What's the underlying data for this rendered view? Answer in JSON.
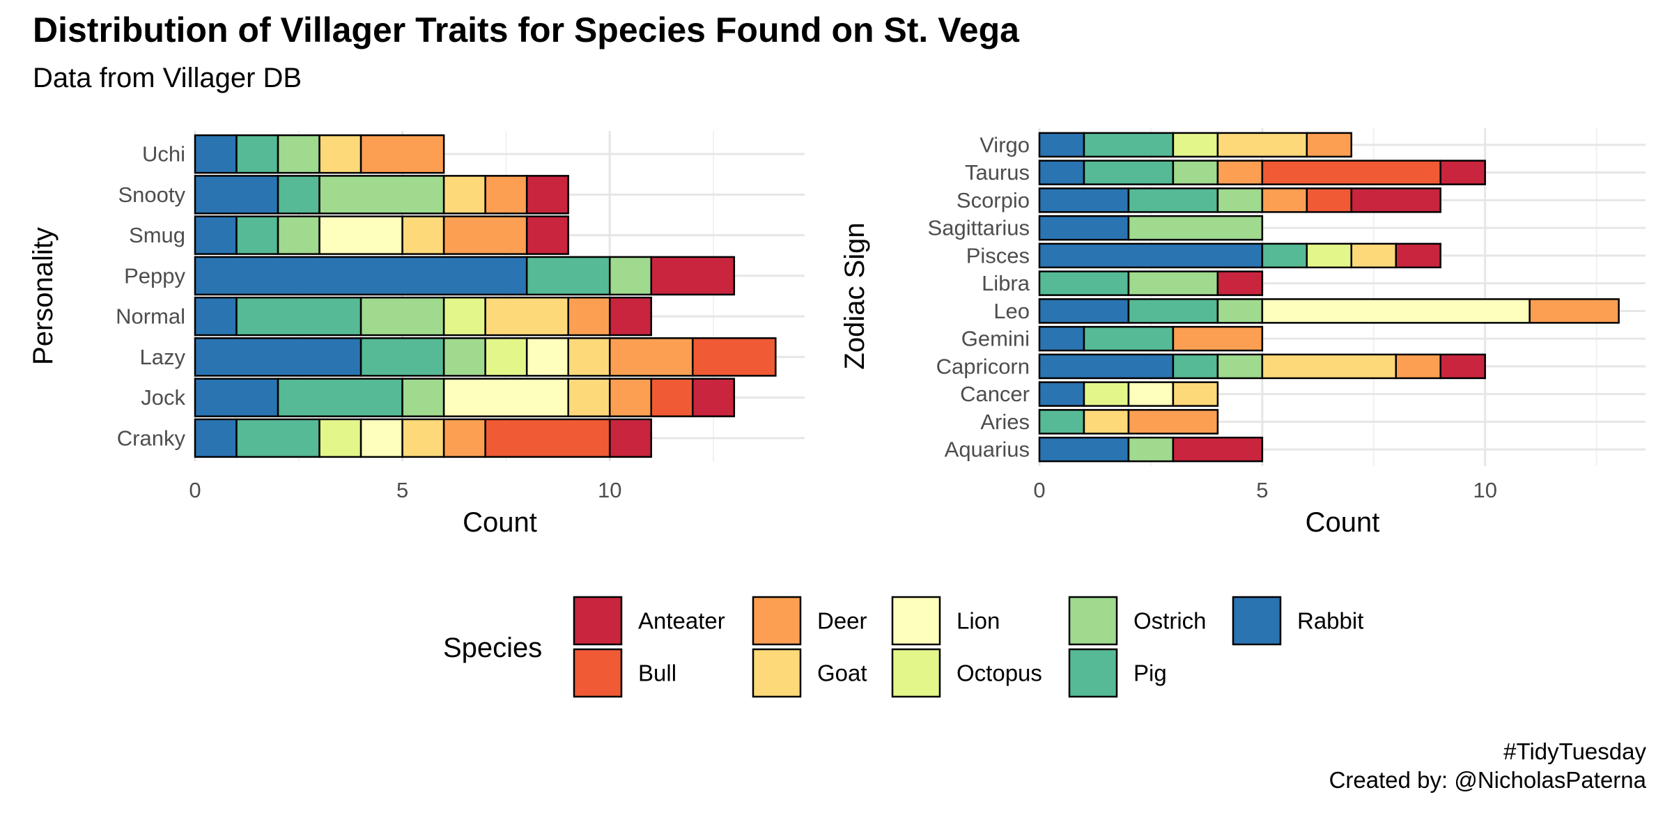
{
  "title": "Distribution of Villager Traits for Species Found on St. Vega",
  "subtitle": "Data from Villager DB",
  "caption": {
    "line1": "#TidyTuesday",
    "line2": "Created by: @NicholasPaterna"
  },
  "legend": {
    "title": "Species",
    "position": "bottom",
    "items": [
      {
        "name": "Anteater",
        "color": "#C9253E"
      },
      {
        "name": "Bull",
        "color": "#F05A35"
      },
      {
        "name": "Deer",
        "color": "#FC9F52"
      },
      {
        "name": "Goat",
        "color": "#FDD97A"
      },
      {
        "name": "Lion",
        "color": "#FFFFBD"
      },
      {
        "name": "Octopus",
        "color": "#E3F68A"
      },
      {
        "name": "Ostrich",
        "color": "#9FDA8E"
      },
      {
        "name": "Pig",
        "color": "#55BA95"
      },
      {
        "name": "Rabbit",
        "color": "#2A74B2"
      }
    ]
  },
  "chart_data": [
    {
      "type": "bar",
      "orientation": "horizontal",
      "stacked": true,
      "xlabel": "Count",
      "ylabel": "Personality",
      "xlim": [
        0,
        14.7
      ],
      "xticks": [
        0,
        5,
        10
      ],
      "grid": true,
      "categories": [
        "Uchi",
        "Snooty",
        "Smug",
        "Peppy",
        "Normal",
        "Lazy",
        "Jock",
        "Cranky"
      ],
      "series": [
        {
          "name": "Rabbit",
          "values": [
            1,
            2,
            1,
            8,
            1,
            4,
            2,
            1
          ]
        },
        {
          "name": "Pig",
          "values": [
            1,
            1,
            1,
            2,
            3,
            2,
            3,
            2
          ]
        },
        {
          "name": "Ostrich",
          "values": [
            1,
            3,
            1,
            1,
            2,
            1,
            1,
            0
          ]
        },
        {
          "name": "Octopus",
          "values": [
            0,
            0,
            0,
            0,
            1,
            1,
            0,
            1
          ]
        },
        {
          "name": "Lion",
          "values": [
            0,
            0,
            2,
            0,
            0,
            1,
            3,
            1
          ]
        },
        {
          "name": "Goat",
          "values": [
            1,
            1,
            1,
            0,
            2,
            1,
            1,
            1
          ]
        },
        {
          "name": "Deer",
          "values": [
            2,
            1,
            2,
            0,
            1,
            2,
            1,
            1
          ]
        },
        {
          "name": "Bull",
          "values": [
            0,
            0,
            0,
            0,
            0,
            2,
            1,
            3
          ]
        },
        {
          "name": "Anteater",
          "values": [
            0,
            1,
            1,
            2,
            1,
            0,
            1,
            1
          ]
        }
      ]
    },
    {
      "type": "bar",
      "orientation": "horizontal",
      "stacked": true,
      "xlabel": "Count",
      "ylabel": "Zodiac Sign",
      "xlim": [
        0,
        13.6
      ],
      "xticks": [
        0,
        5,
        10
      ],
      "grid": true,
      "categories": [
        "Virgo",
        "Taurus",
        "Scorpio",
        "Sagittarius",
        "Pisces",
        "Libra",
        "Leo",
        "Gemini",
        "Capricorn",
        "Cancer",
        "Aries",
        "Aquarius"
      ],
      "series": [
        {
          "name": "Rabbit",
          "values": [
            1,
            1,
            2,
            2,
            5,
            0,
            2,
            1,
            3,
            1,
            0,
            2
          ]
        },
        {
          "name": "Pig",
          "values": [
            2,
            2,
            2,
            0,
            1,
            2,
            2,
            2,
            1,
            0,
            1,
            0
          ]
        },
        {
          "name": "Ostrich",
          "values": [
            0,
            1,
            1,
            3,
            0,
            2,
            1,
            0,
            1,
            0,
            0,
            1
          ]
        },
        {
          "name": "Octopus",
          "values": [
            1,
            0,
            0,
            0,
            1,
            0,
            0,
            0,
            0,
            1,
            0,
            0
          ]
        },
        {
          "name": "Lion",
          "values": [
            0,
            0,
            0,
            0,
            0,
            0,
            6,
            0,
            0,
            1,
            0,
            0
          ]
        },
        {
          "name": "Goat",
          "values": [
            2,
            0,
            0,
            0,
            1,
            0,
            0,
            0,
            3,
            1,
            1,
            0
          ]
        },
        {
          "name": "Deer",
          "values": [
            1,
            1,
            1,
            0,
            0,
            0,
            2,
            2,
            1,
            0,
            2,
            0
          ]
        },
        {
          "name": "Bull",
          "values": [
            0,
            4,
            1,
            0,
            0,
            0,
            0,
            0,
            0,
            0,
            0,
            0
          ]
        },
        {
          "name": "Anteater",
          "values": [
            0,
            1,
            2,
            0,
            1,
            1,
            0,
            0,
            1,
            0,
            0,
            2
          ]
        }
      ]
    }
  ]
}
